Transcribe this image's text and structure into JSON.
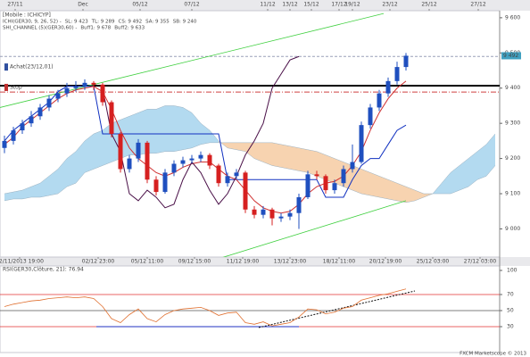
{
  "chart_data": [
    {
      "type": "candlestick",
      "title": "[Mobile : ICHICYP]",
      "legend": [
        [
          {
            "text": "ICHI(GER30, 9, 26, 52) -",
            "color": "#333333"
          },
          {
            "text": "SL: 9 423",
            "color": "#d02020"
          },
          {
            "text": "TL: 9 289",
            "color": "#1030c0"
          },
          {
            "text": "CS: 9 492",
            "color": "#5a1a5a"
          },
          {
            "text": "SA: 9 355",
            "color": "#e08030"
          },
          {
            "text": "SB: 9 240",
            "color": "#3090d0"
          }
        ],
        [
          {
            "text": "SHI_CHANNEL (5)(GER30,60) -",
            "color": "#20a020"
          },
          {
            "text": "Buff1: 9 678",
            "color": "#20a020"
          },
          {
            "text": "Buff2: 9 633",
            "color": "#20a020"
          }
        ]
      ],
      "open": [
        9230,
        9250,
        9280,
        9300,
        9320,
        9345,
        9370,
        9385,
        9400,
        9405,
        9415,
        9410,
        9360,
        9270,
        9170,
        9200,
        9245,
        9140,
        9105,
        9160,
        9185,
        9195,
        9200,
        9210,
        9180,
        9130,
        9150,
        9160,
        9055,
        9040,
        9055,
        9030,
        9035,
        9045,
        9090,
        9155,
        9150,
        9110,
        9130,
        9170,
        9190,
        9295,
        9345,
        9385,
        9420,
        9460,
        null,
        null,
        null,
        null,
        null,
        null,
        null,
        null,
        null,
        null
      ],
      "high": [
        9265,
        9290,
        9310,
        9335,
        9355,
        9380,
        9395,
        9415,
        9420,
        9425,
        9420,
        9415,
        9365,
        9275,
        9210,
        9255,
        9250,
        9150,
        9170,
        9195,
        9205,
        9210,
        9220,
        9215,
        9185,
        9160,
        9170,
        9165,
        9065,
        9065,
        9060,
        9045,
        9055,
        9100,
        9165,
        9165,
        9155,
        9140,
        9180,
        9240,
        9305,
        9355,
        9395,
        9430,
        9475,
        9500,
        null,
        null,
        null,
        null,
        null,
        null,
        null,
        null,
        null,
        null
      ],
      "low": [
        9215,
        9240,
        9270,
        9290,
        9310,
        9335,
        9360,
        9375,
        9390,
        9395,
        9395,
        9350,
        9260,
        9160,
        9160,
        9190,
        9130,
        9095,
        9100,
        9150,
        9175,
        9185,
        9190,
        9170,
        9120,
        9120,
        9140,
        9045,
        9030,
        9030,
        9010,
        9020,
        9025,
        9000,
        9085,
        9140,
        9100,
        9100,
        9120,
        9160,
        9185,
        9285,
        9335,
        9375,
        9410,
        9450,
        null,
        null,
        null,
        null,
        null,
        null,
        null,
        null,
        null,
        null
      ],
      "close": [
        9250,
        9280,
        9300,
        9320,
        9345,
        9370,
        9385,
        9400,
        9405,
        9415,
        9410,
        9360,
        9270,
        9170,
        9200,
        9245,
        9140,
        9105,
        9160,
        9185,
        9195,
        9200,
        9210,
        9180,
        9130,
        9150,
        9160,
        9055,
        9040,
        9055,
        9030,
        9035,
        9045,
        9090,
        9155,
        9150,
        9110,
        9130,
        9170,
        9190,
        9295,
        9345,
        9385,
        9420,
        9460,
        9492,
        null,
        null,
        null,
        null,
        null,
        null,
        null,
        null,
        null,
        null
      ],
      "up_color": "#1f4fbf",
      "down_color": "#d62020",
      "cloud": {
        "span_a": [
          9100,
          9105,
          9110,
          9120,
          9130,
          9150,
          9170,
          9200,
          9220,
          9250,
          9270,
          9280,
          9300,
          9310,
          9320,
          9330,
          9340,
          9340,
          9350,
          9350,
          9345,
          9330,
          9300,
          9280,
          9250,
          9230,
          9225,
          9220,
          9200,
          9190,
          9180,
          9175,
          9170,
          9165,
          9160,
          9150,
          9140,
          9130,
          9120,
          9110,
          9100,
          9095,
          9090,
          9085,
          9080,
          9075,
          9080,
          9090,
          9100,
          9130,
          9160,
          9180,
          9200,
          9220,
          9240,
          9270
        ],
        "span_b": [
          9080,
          9085,
          9085,
          9090,
          9090,
          9095,
          9100,
          9120,
          9130,
          9160,
          9170,
          9180,
          9190,
          9200,
          9210,
          9210,
          9215,
          9215,
          9220,
          9220,
          9225,
          9230,
          9240,
          9245,
          9245,
          9245,
          9245,
          9245,
          9245,
          9245,
          9245,
          9240,
          9235,
          9230,
          9225,
          9220,
          9210,
          9200,
          9190,
          9180,
          9170,
          9160,
          9150,
          9140,
          9130,
          9120,
          9110,
          9100,
          9100,
          9100,
          9100,
          9110,
          9120,
          9140,
          9150,
          9180
        ],
        "up_color": "#b3daf0",
        "down_color": "#f7d3b0",
        "edge_color": "#9ab0c0"
      },
      "overlays": [
        {
          "color": "#1030c0",
          "values": [
            9250,
            9280,
            9300,
            9320,
            9340,
            9360,
            9390,
            9405,
            9405,
            9405,
            9405,
            9270,
            9270,
            9270,
            9270,
            9270,
            9270,
            9270,
            9270,
            9270,
            9270,
            9270,
            9270,
            9270,
            9270,
            9140,
            9140,
            9140,
            9140,
            9140,
            9140,
            9140,
            9140,
            9140,
            9140,
            9140,
            9090,
            9090,
            9090,
            9140,
            9180,
            9200,
            9200,
            9240,
            9280,
            9295,
            null,
            null,
            null,
            null,
            null,
            null,
            null,
            null,
            null,
            null
          ]
        },
        {
          "color": "#d03030",
          "values": [
            9240,
            9260,
            9290,
            9310,
            9330,
            9350,
            9370,
            9385,
            9395,
            9400,
            9405,
            9390,
            9340,
            9280,
            9230,
            9200,
            9180,
            9160,
            9150,
            9160,
            9175,
            9185,
            9190,
            9190,
            9170,
            9150,
            9140,
            9110,
            9080,
            9060,
            9050,
            9045,
            9050,
            9070,
            9100,
            9120,
            9130,
            9135,
            9150,
            9180,
            9220,
            9280,
            9330,
            9370,
            9400,
            9420,
            null,
            null,
            null,
            null,
            null,
            null,
            null,
            null,
            null,
            null
          ]
        },
        {
          "color": "#4a1048",
          "values": [
            null,
            null,
            null,
            null,
            null,
            null,
            null,
            null,
            null,
            null,
            null,
            9400,
            9270,
            9220,
            9100,
            9080,
            9110,
            9090,
            9060,
            9070,
            9140,
            9190,
            9160,
            9110,
            9070,
            9100,
            9150,
            9210,
            9250,
            9300,
            9400,
            9440,
            9480,
            9490,
            null,
            null,
            null,
            null,
            null,
            null,
            null,
            null,
            null,
            null,
            null,
            null,
            null,
            null,
            null,
            null,
            null,
            null,
            null,
            null,
            null,
            null
          ]
        }
      ],
      "channels": [
        {
          "x": [
            -0.5,
            42.5
          ],
          "values": [
            9345,
            9612
          ],
          "color": "#40d040"
        },
        {
          "x": [
            20.5,
            45
          ],
          "values": [
            8888,
            9080
          ],
          "color": "#40d040"
        }
      ],
      "levels": [
        {
          "value": 9407,
          "color": "#000000",
          "width": 2,
          "dash": "none"
        },
        {
          "value": 9490,
          "color": "#9aa0b8",
          "width": 1,
          "dash": "3 2"
        },
        {
          "value": 9389,
          "color": "#d04040",
          "width": 1,
          "dash": "6 2 1 2"
        }
      ],
      "markers": [
        {
          "value": 9460,
          "label": "Achat(23/12,01)",
          "color": "#3050a0"
        },
        {
          "value": 9402,
          "label": "Stop",
          "color": "#c03030"
        }
      ],
      "last": {
        "value": 9492,
        "label": "9 492",
        "color": "#40a0c0"
      },
      "xlim": [
        -0.5,
        55.5
      ],
      "ylim": [
        8920,
        9620
      ],
      "yticks": [
        {
          "value": 9000,
          "label": "9 000"
        },
        {
          "value": 9100,
          "label": "9 100"
        },
        {
          "value": 9200,
          "label": "9 200"
        },
        {
          "value": 9300,
          "label": "9 300"
        },
        {
          "value": 9400,
          "label": "9 400"
        },
        {
          "value": 9500,
          "label": "9 500"
        },
        {
          "value": 9600,
          "label": "9 600"
        }
      ],
      "xticks": [
        {
          "value": 1.7,
          "label": "22/11/2013 19:00"
        },
        {
          "value": 10.5,
          "label": "02/12 23:00"
        },
        {
          "value": 16,
          "label": "05/12 11:00"
        },
        {
          "value": 21.3,
          "label": "09/12 15:00"
        },
        {
          "value": 26.7,
          "label": "11/12 19:00"
        },
        {
          "value": 32,
          "label": "13/12 23:00"
        },
        {
          "value": 37.5,
          "label": "18/12 11:00"
        },
        {
          "value": 42.7,
          "label": "20/12 19:00"
        },
        {
          "value": 48,
          "label": "25/12 03:00"
        },
        {
          "value": 53.3,
          "label": "27/12 03:00"
        }
      ],
      "top_ticks": [
        {
          "value": 1.2,
          "label": "27/11"
        },
        {
          "value": 8.8,
          "label": "Dec"
        },
        {
          "value": 15.2,
          "label": "05/12"
        },
        {
          "value": 21,
          "label": "07/12"
        },
        {
          "value": 29.5,
          "label": "11/12"
        },
        {
          "value": 32,
          "label": "13/12"
        },
        {
          "value": 34.4,
          "label": "15/12"
        },
        {
          "value": 37.5,
          "label": "17/12"
        },
        {
          "value": 39,
          "label": "19/12"
        },
        {
          "value": 43.2,
          "label": "23/12"
        },
        {
          "value": 47.6,
          "label": "25/12"
        },
        {
          "value": 53.1,
          "label": "27/12"
        }
      ]
    },
    {
      "type": "line",
      "title": "RSI(GER30,Clôture, 21): 76.94",
      "values": [
        55,
        58,
        60,
        62,
        63,
        65,
        66,
        67,
        66,
        67,
        65,
        55,
        40,
        35,
        45,
        52,
        40,
        36,
        45,
        50,
        52,
        53,
        54,
        50,
        44,
        47,
        48,
        35,
        33,
        36,
        31,
        33,
        35,
        42,
        52,
        51,
        46,
        48,
        53,
        55,
        63,
        66,
        69,
        71,
        74,
        76.94
      ],
      "color": "#e07030",
      "xlim": [
        -0.5,
        55.5
      ],
      "ylim": [
        0,
        100
      ],
      "yticks": [
        100,
        70,
        50,
        30
      ],
      "levels": [
        {
          "value": 70,
          "color": "#e03030"
        },
        {
          "value": 50,
          "color": "#555555"
        },
        {
          "value": 30,
          "color": "#e03030"
        }
      ]
    }
  ],
  "footer": "FXCM Marketscope © 2013"
}
